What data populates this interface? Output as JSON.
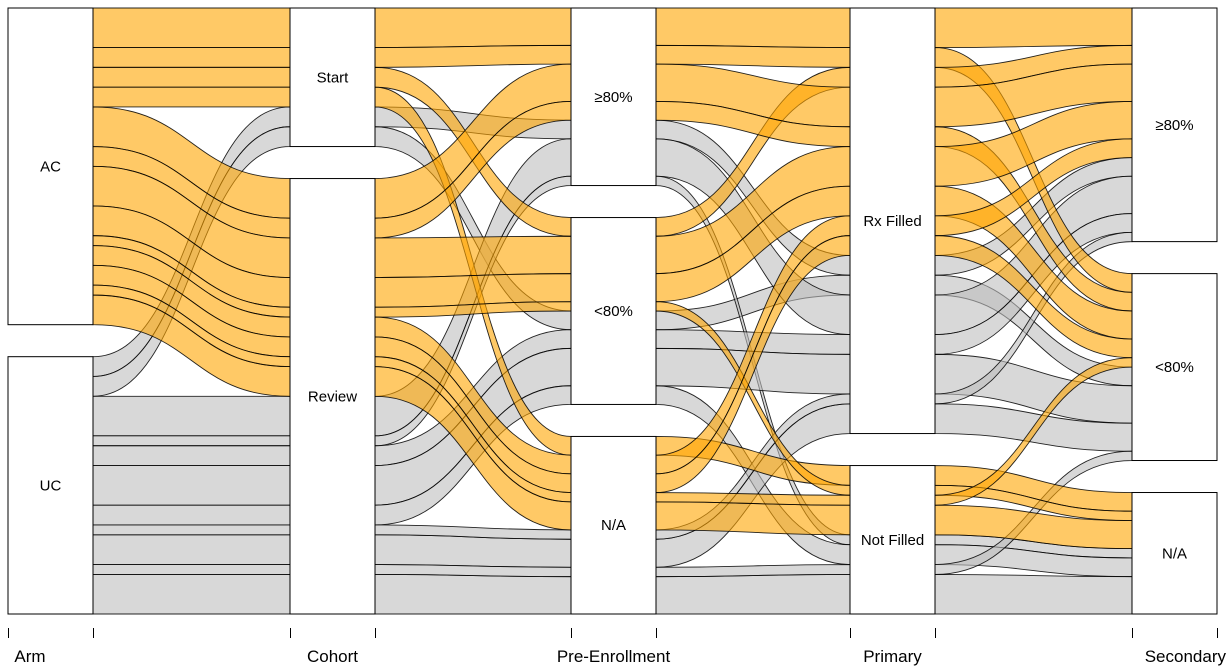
{
  "chart_data": {
    "type": "alluvial",
    "colors": {
      "AC": "#FFA500",
      "UC": "#BEBEBE"
    },
    "axes": [
      {
        "name": "Arm",
        "categories": [
          "AC",
          "UC"
        ]
      },
      {
        "name": "Cohort",
        "categories": [
          "Start",
          "Review"
        ]
      },
      {
        "name": "Pre-Enrollment",
        "categories": [
          "≥80%",
          "<80%",
          "N/A"
        ]
      },
      {
        "name": "Primary",
        "categories": [
          "Rx Filled",
          "Not Filled"
        ]
      },
      {
        "name": "Secondary",
        "categories": [
          "≥80%",
          "<80%",
          "N/A"
        ]
      }
    ],
    "flows": [
      {
        "path": [
          "AC",
          "Start",
          "≥80%",
          "Rx Filled",
          "≥80%"
        ],
        "n": 4
      },
      {
        "path": [
          "AC",
          "Start",
          "≥80%",
          "Rx Filled",
          "<80%"
        ],
        "n": 2
      },
      {
        "path": [
          "AC",
          "Start",
          "<80%",
          "Rx Filled",
          "≥80%"
        ],
        "n": 2
      },
      {
        "path": [
          "AC",
          "Start",
          "N/A",
          "Not Filled",
          "N/A"
        ],
        "n": 2
      },
      {
        "path": [
          "AC",
          "Review",
          "≥80%",
          "Rx Filled",
          "≥80%"
        ],
        "n": 4
      },
      {
        "path": [
          "AC",
          "Review",
          "≥80%",
          "Rx Filled",
          "<80%"
        ],
        "n": 2
      },
      {
        "path": [
          "AC",
          "Review",
          "<80%",
          "Rx Filled",
          "≥80%"
        ],
        "n": 4
      },
      {
        "path": [
          "AC",
          "Review",
          "<80%",
          "Rx Filled",
          "<80%"
        ],
        "n": 3
      },
      {
        "path": [
          "AC",
          "Review",
          "<80%",
          "Not Filled",
          "N/A"
        ],
        "n": 1
      },
      {
        "path": [
          "AC",
          "Review",
          "N/A",
          "Rx Filled",
          "≥80%"
        ],
        "n": 2
      },
      {
        "path": [
          "AC",
          "Review",
          "N/A",
          "Rx Filled",
          "<80%"
        ],
        "n": 2
      },
      {
        "path": [
          "AC",
          "Review",
          "N/A",
          "Not Filled",
          "N/A"
        ],
        "n": 3
      },
      {
        "path": [
          "AC",
          "Review",
          "N/A",
          "Not Filled",
          "<80%"
        ],
        "n": 1
      },
      {
        "path": [
          "UC",
          "Start",
          "≥80%",
          "Rx Filled",
          "≥80%"
        ],
        "n": 2
      },
      {
        "path": [
          "UC",
          "Start",
          "<80%",
          "Rx Filled",
          "<80%"
        ],
        "n": 2
      },
      {
        "path": [
          "UC",
          "Review",
          "≥80%",
          "Rx Filled",
          "≥80%"
        ],
        "n": 4
      },
      {
        "path": [
          "UC",
          "Review",
          "≥80%",
          "Not Filled",
          "N/A"
        ],
        "n": 1
      },
      {
        "path": [
          "UC",
          "Review",
          "<80%",
          "Rx Filled",
          "≥80%"
        ],
        "n": 2
      },
      {
        "path": [
          "UC",
          "Review",
          "<80%",
          "Rx Filled",
          "<80%"
        ],
        "n": 4
      },
      {
        "path": [
          "UC",
          "Review",
          "<80%",
          "Not Filled",
          "N/A"
        ],
        "n": 2
      },
      {
        "path": [
          "UC",
          "Review",
          "N/A",
          "Rx Filled",
          "<80%"
        ],
        "n": 3
      },
      {
        "path": [
          "UC",
          "Review",
          "N/A",
          "Rx Filled",
          "≥80%"
        ],
        "n": 1
      },
      {
        "path": [
          "UC",
          "Review",
          "N/A",
          "Not Filled",
          "N/A"
        ],
        "n": 4
      },
      {
        "path": [
          "UC",
          "Review",
          "N/A",
          "Not Filled",
          "<80%"
        ],
        "n": 1
      }
    ]
  }
}
